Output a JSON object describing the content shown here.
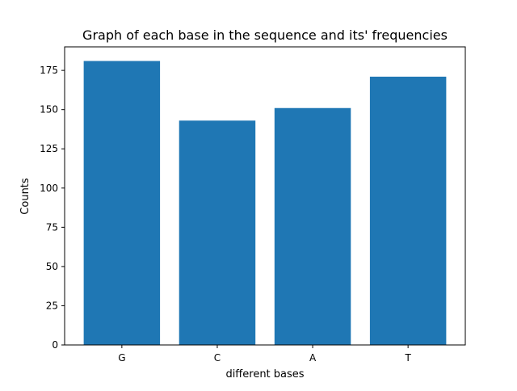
{
  "chart_data": {
    "type": "bar",
    "title": "Graph of each base in the sequence and its' frequencies",
    "xlabel": "different bases",
    "ylabel": "Counts",
    "categories": [
      "G",
      "C",
      "A",
      "T"
    ],
    "values": [
      181,
      143,
      151,
      171
    ],
    "ylim": [
      0,
      190
    ],
    "yticks": [
      0,
      25,
      50,
      75,
      100,
      125,
      150,
      175
    ],
    "bar_color": "#1f77b4",
    "grid": false,
    "legend": "none"
  }
}
